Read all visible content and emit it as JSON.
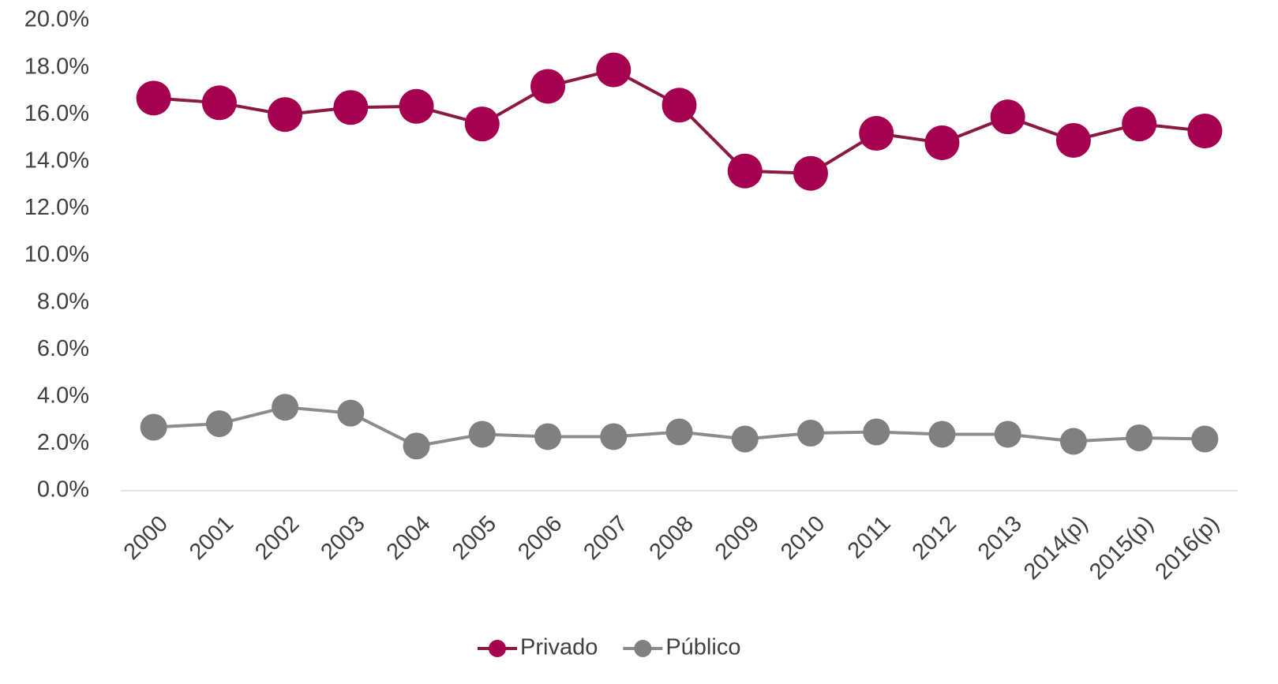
{
  "chart_data": {
    "type": "line",
    "categories": [
      "2000",
      "2001",
      "2002",
      "2003",
      "2004",
      "2005",
      "2006",
      "2007",
      "2008",
      "2009",
      "2010",
      "2011",
      "2012",
      "2013",
      "2014(p)",
      "2015(p)",
      "2016(p)"
    ],
    "series": [
      {
        "name": "Privado",
        "color": "#a50050",
        "line_color": "#8b1a40",
        "values": [
          16.7,
          16.5,
          16.0,
          16.3,
          16.35,
          15.6,
          17.2,
          17.9,
          16.4,
          13.6,
          13.5,
          15.2,
          14.8,
          15.9,
          14.9,
          15.6,
          15.3
        ]
      },
      {
        "name": "Público",
        "color": "#808080",
        "line_color": "#8c8c8c",
        "values": [
          2.7,
          2.85,
          3.55,
          3.3,
          1.9,
          2.4,
          2.3,
          2.3,
          2.5,
          2.2,
          2.45,
          2.5,
          2.4,
          2.4,
          2.1,
          2.25,
          2.2
        ]
      }
    ],
    "ylim": [
      0,
      20
    ],
    "yticks": [
      {
        "value": 0,
        "label": "0.0%"
      },
      {
        "value": 2,
        "label": "2.0%"
      },
      {
        "value": 4,
        "label": "4.0%"
      },
      {
        "value": 6,
        "label": "6.0%"
      },
      {
        "value": 8,
        "label": "8.0%"
      },
      {
        "value": 10,
        "label": "10.0%"
      },
      {
        "value": 12,
        "label": "12.0%"
      },
      {
        "value": 14,
        "label": "14.0%"
      },
      {
        "value": 16,
        "label": "16.0%"
      },
      {
        "value": 18,
        "label": "18.0%"
      },
      {
        "value": 20,
        "label": "20.0%"
      }
    ],
    "legend": "bottom"
  }
}
